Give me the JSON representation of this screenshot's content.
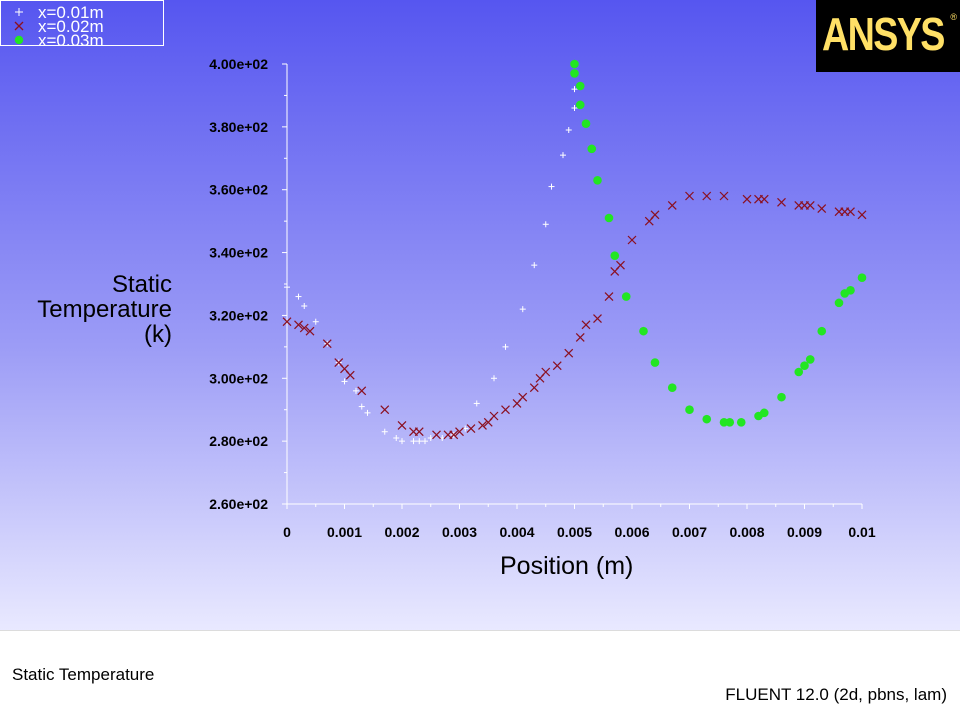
{
  "legend": {
    "entries": [
      {
        "label": "x=0.01m",
        "symbol": "plus",
        "color": "#ffffff"
      },
      {
        "label": "x=0.02m",
        "symbol": "cross",
        "color": "#8b1020"
      },
      {
        "label": "x=0.03m",
        "symbol": "dot",
        "color": "#22e622"
      }
    ]
  },
  "logo": {
    "text": "ANSYS",
    "mark": "®",
    "color": "#ffe066"
  },
  "footer": {
    "left": "Static Temperature",
    "right": "FLUENT 12.0 (2d, pbns, lam)"
  },
  "chart_data": {
    "type": "scatter",
    "title": "",
    "xlabel": "Position (m)",
    "ylabel_lines": [
      "Static",
      "Temperature",
      "(k)"
    ],
    "xlim": [
      0,
      0.01
    ],
    "ylim": [
      260,
      400
    ],
    "x_ticks": [
      0,
      0.001,
      0.002,
      0.003,
      0.004,
      0.005,
      0.006,
      0.007,
      0.008,
      0.009,
      0.01
    ],
    "x_tick_labels": [
      "0",
      "0.001",
      "0.002",
      "0.003",
      "0.004",
      "0.005",
      "0.006",
      "0.007",
      "0.008",
      "0.009",
      "0.01"
    ],
    "y_ticks": [
      260,
      280,
      300,
      320,
      340,
      360,
      380,
      400
    ],
    "y_tick_labels": [
      "2.60e+02",
      "2.80e+02",
      "3.00e+02",
      "3.20e+02",
      "3.40e+02",
      "3.60e+02",
      "3.80e+02",
      "4.00e+02"
    ],
    "series": [
      {
        "name": "x=0.01m",
        "marker": "plus",
        "color": "#ffffff",
        "x": [
          0.0,
          0.0002,
          0.0003,
          0.0005,
          0.0007,
          0.0009,
          0.001,
          0.0012,
          0.0013,
          0.0014,
          0.0017,
          0.0019,
          0.002,
          0.0022,
          0.0023,
          0.0024,
          0.0025,
          0.0027,
          0.0029,
          0.0031,
          0.0033,
          0.0036,
          0.0038,
          0.0041,
          0.0043,
          0.0045,
          0.0046,
          0.0048,
          0.0049,
          0.005,
          0.005
        ],
        "y": [
          329,
          326,
          323,
          318,
          311,
          305,
          299,
          296,
          291,
          289,
          283,
          281,
          280,
          280,
          280,
          280,
          281,
          281,
          282,
          284,
          292,
          300,
          310,
          322,
          336,
          349,
          361,
          371,
          379,
          386,
          392
        ]
      },
      {
        "name": "x=0.02m",
        "marker": "cross",
        "color": "#8b1020",
        "x": [
          0.0,
          0.0002,
          0.0003,
          0.0004,
          0.0007,
          0.0009,
          0.001,
          0.0011,
          0.0013,
          0.0017,
          0.002,
          0.0022,
          0.0023,
          0.0026,
          0.0028,
          0.0029,
          0.003,
          0.0032,
          0.0034,
          0.0035,
          0.0036,
          0.0038,
          0.004,
          0.0041,
          0.0043,
          0.0044,
          0.0045,
          0.0047,
          0.0049,
          0.0051,
          0.0052,
          0.0054,
          0.0056,
          0.0057,
          0.0058,
          0.006,
          0.0063,
          0.0064,
          0.0067,
          0.007,
          0.0073,
          0.0076,
          0.008,
          0.0082,
          0.0083,
          0.0086,
          0.0089,
          0.009,
          0.0091,
          0.0093,
          0.0096,
          0.0097,
          0.0098,
          0.01
        ],
        "y": [
          318,
          317,
          316,
          315,
          311,
          305,
          303,
          301,
          296,
          290,
          285,
          283,
          283,
          282,
          282,
          282,
          283,
          284,
          285,
          286,
          288,
          290,
          292,
          294,
          297,
          300,
          302,
          304,
          308,
          313,
          317,
          319,
          326,
          334,
          336,
          344,
          350,
          352,
          355,
          358,
          358,
          358,
          357,
          357,
          357,
          356,
          355,
          355,
          355,
          354,
          353,
          353,
          353,
          352
        ]
      },
      {
        "name": "x=0.03m",
        "marker": "dot",
        "color": "#22e622",
        "x": [
          0.005,
          0.005,
          0.0051,
          0.0051,
          0.0052,
          0.0053,
          0.0054,
          0.0056,
          0.0057,
          0.0059,
          0.0062,
          0.0064,
          0.0067,
          0.007,
          0.0073,
          0.0076,
          0.0077,
          0.0079,
          0.0082,
          0.0083,
          0.0086,
          0.0089,
          0.009,
          0.0091,
          0.0093,
          0.0096,
          0.0097,
          0.0098,
          0.01
        ],
        "y": [
          400,
          397,
          393,
          387,
          381,
          373,
          363,
          351,
          339,
          326,
          315,
          305,
          297,
          290,
          287,
          286,
          286,
          286,
          288,
          289,
          294,
          302,
          304,
          306,
          315,
          324,
          327,
          328,
          332
        ]
      }
    ],
    "grid": false,
    "legend_position": "top-left"
  }
}
